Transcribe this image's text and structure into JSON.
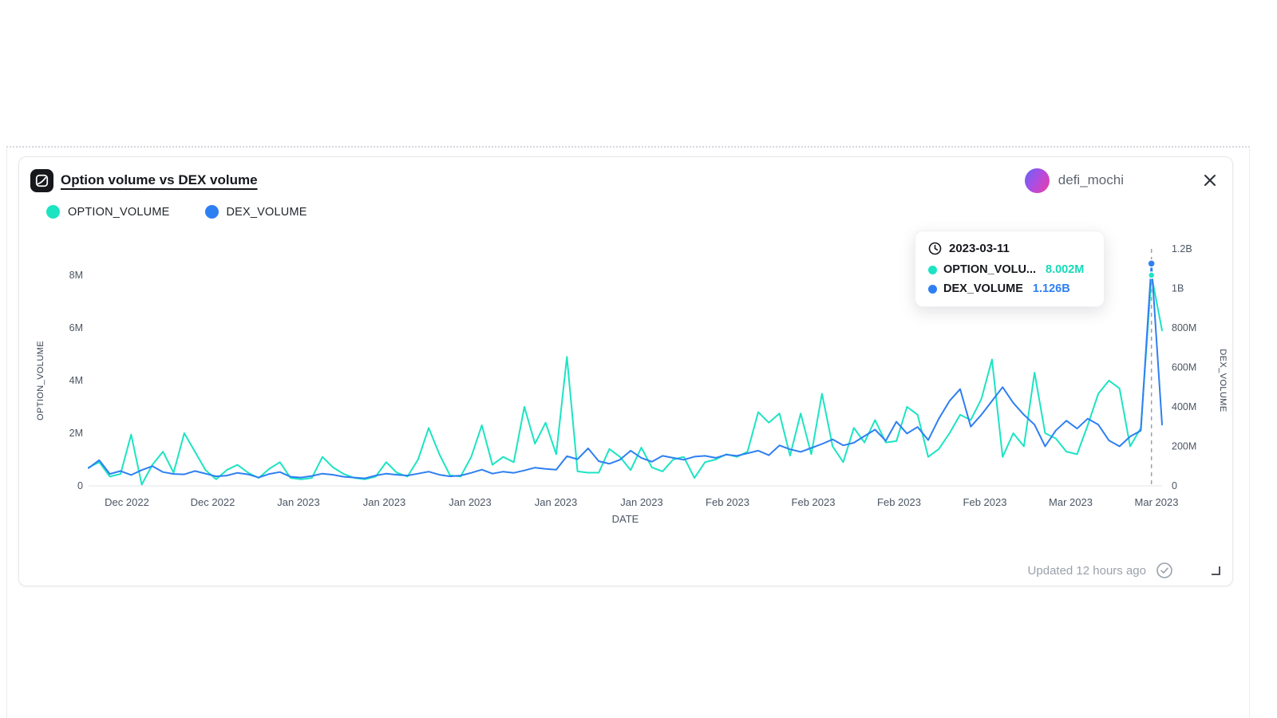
{
  "header": {
    "title": "Option volume vs DEX volume",
    "author": "defi_mochi"
  },
  "legend": {
    "items": [
      {
        "label": "OPTION_VOLUME",
        "color": "#1ce4c3"
      },
      {
        "label": "DEX_VOLUME",
        "color": "#2e7ff2"
      }
    ]
  },
  "tooltip": {
    "date": "2023-03-11",
    "rows": [
      {
        "label": "OPTION_VOLU...",
        "value": "8.002M",
        "color": "#14dbb8"
      },
      {
        "label": "DEX_VOLUME",
        "value": "1.126B",
        "color": "#2e7ff2"
      }
    ]
  },
  "footer": {
    "updated": "Updated 12 hours ago"
  },
  "chart_data": {
    "type": "line",
    "title": "Option volume vs DEX volume",
    "xlabel": "DATE",
    "x_tick_labels": [
      "Dec 2022",
      "Dec 2022",
      "Jan 2023",
      "Jan 2023",
      "Jan 2023",
      "Jan 2023",
      "Jan 2023",
      "Feb 2023",
      "Feb 2023",
      "Feb 2023",
      "Feb 2023",
      "Mar 2023",
      "Mar 2023"
    ],
    "start_date": "2022-12-01",
    "end_date": "2023-03-12",
    "frequency": "daily",
    "grid": false,
    "legend_position": "top-left",
    "left_axis": {
      "label": "OPTION_VOLUME",
      "ticks": [
        "0",
        "2M",
        "4M",
        "6M",
        "8M"
      ],
      "tick_values_m": [
        0,
        2,
        4,
        6,
        8
      ],
      "max_m": 8
    },
    "right_axis": {
      "label": "DEX_VOLUME",
      "ticks": [
        "0",
        "200M",
        "400M",
        "600M",
        "800M",
        "1B",
        "1.2B"
      ],
      "tick_values_m": [
        0,
        200,
        400,
        600,
        800,
        1000,
        1200
      ],
      "max_m": 1200
    },
    "series": [
      {
        "name": "OPTION_VOLUME",
        "axis": "left",
        "color": "#1ce4c3",
        "unit": "M",
        "values": [
          0.7,
          0.9,
          0.35,
          0.45,
          1.95,
          0.05,
          0.8,
          1.3,
          0.5,
          2.0,
          1.3,
          0.6,
          0.25,
          0.6,
          0.8,
          0.5,
          0.3,
          0.65,
          0.9,
          0.3,
          0.25,
          0.3,
          1.1,
          0.7,
          0.45,
          0.3,
          0.25,
          0.35,
          0.9,
          0.5,
          0.35,
          1.0,
          2.2,
          1.2,
          0.4,
          0.35,
          1.1,
          2.3,
          0.8,
          1.1,
          0.9,
          3.0,
          1.6,
          2.4,
          1.2,
          4.9,
          0.55,
          0.5,
          0.5,
          1.4,
          1.1,
          0.6,
          1.45,
          0.7,
          0.55,
          1.0,
          1.1,
          0.3,
          0.9,
          1.0,
          1.2,
          1.1,
          1.3,
          2.8,
          2.4,
          2.75,
          1.15,
          2.75,
          1.2,
          3.5,
          1.5,
          0.9,
          2.2,
          1.65,
          2.5,
          1.65,
          1.7,
          3.0,
          2.7,
          1.1,
          1.4,
          2.0,
          2.7,
          2.5,
          3.3,
          4.8,
          1.1,
          2.0,
          1.5,
          4.3,
          2.0,
          1.8,
          1.3,
          1.2,
          2.3,
          3.5,
          4.0,
          3.7,
          1.5,
          2.2,
          8.002,
          5.9
        ]
      },
      {
        "name": "DEX_VOLUME",
        "axis": "right",
        "color": "#2e7ff2",
        "unit": "M",
        "values": [
          90,
          130,
          60,
          75,
          55,
          80,
          100,
          70,
          60,
          58,
          75,
          62,
          48,
          52,
          66,
          58,
          42,
          60,
          70,
          46,
          42,
          50,
          62,
          56,
          46,
          42,
          38,
          52,
          62,
          56,
          52,
          62,
          72,
          56,
          48,
          52,
          66,
          82,
          62,
          72,
          66,
          78,
          92,
          86,
          82,
          150,
          135,
          190,
          125,
          112,
          132,
          178,
          142,
          122,
          152,
          142,
          132,
          148,
          152,
          142,
          158,
          152,
          165,
          178,
          155,
          205,
          185,
          172,
          192,
          212,
          235,
          205,
          218,
          252,
          285,
          228,
          325,
          265,
          298,
          232,
          340,
          430,
          490,
          300,
          360,
          430,
          500,
          420,
          360,
          310,
          200,
          280,
          330,
          290,
          340,
          310,
          230,
          200,
          250,
          280,
          1126,
          310
        ]
      }
    ],
    "highlight": {
      "date": "2023-03-11",
      "index": 100,
      "option_volume_m": 8.002,
      "dex_volume_m": 1126,
      "option_volume_label": "8.002M",
      "dex_volume_label": "1.126B"
    }
  }
}
